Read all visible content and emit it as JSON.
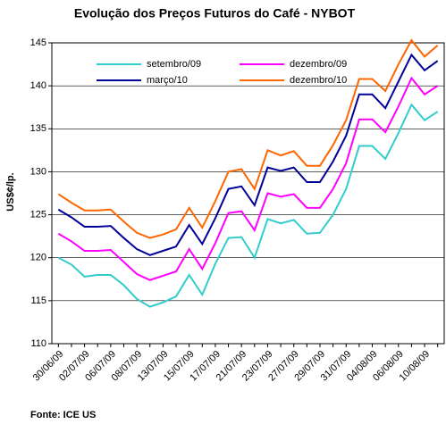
{
  "chart_data": {
    "type": "line",
    "title": "Evolução dos Preços Futuros do Café - NYBOT",
    "y_label": "US$¢/lp.",
    "source": "Fonte: ICE US",
    "categories": [
      "30/06/09",
      null,
      "02/07/09",
      null,
      "06/07/09",
      null,
      "08/07/09",
      null,
      "13/07/09",
      null,
      "15/07/09",
      null,
      "17/07/09",
      null,
      "21/07/09",
      null,
      "23/07/09",
      null,
      "27/07/09",
      null,
      "29/07/09",
      null,
      "31/07/09",
      null,
      "04/08/09",
      null,
      "06/08/09",
      null,
      "10/08/09",
      null
    ],
    "series": [
      {
        "name": "setembro/09",
        "color": "#33cccc",
        "values": [
          120,
          119.2,
          117.8,
          118,
          118,
          116.8,
          115.2,
          114.3,
          114.8,
          115.5,
          118,
          115.7,
          119.3,
          122.3,
          122.4,
          120,
          124.5,
          124,
          124.4,
          122.8,
          122.9,
          125,
          128,
          133,
          133,
          131.5,
          134.5,
          137.8,
          136,
          137
        ]
      },
      {
        "name": "dezembro/09",
        "color": "#ff00ff",
        "values": [
          122.8,
          121.9,
          120.8,
          120.8,
          120.9,
          119.5,
          118.1,
          117.4,
          117.9,
          118.4,
          121,
          118.7,
          121.7,
          125.2,
          125.4,
          123.2,
          127.5,
          127.1,
          127.4,
          125.8,
          125.8,
          128,
          131,
          136.1,
          136.1,
          134.6,
          137.6,
          140.9,
          139,
          140
        ]
      },
      {
        "name": "março/10",
        "color": "#000099",
        "values": [
          125.6,
          124.7,
          123.6,
          123.6,
          123.7,
          122.3,
          121,
          120.3,
          120.8,
          121.3,
          123.8,
          121.6,
          124.6,
          128,
          128.3,
          126.1,
          130.5,
          130.1,
          130.5,
          128.8,
          128.8,
          131.2,
          134.2,
          139,
          139,
          137.4,
          140.5,
          143.6,
          141.8,
          142.9
        ]
      },
      {
        "name": "dezembro/10",
        "color": "#ff6600",
        "values": [
          127.4,
          126.4,
          125.5,
          125.5,
          125.6,
          124.2,
          122.9,
          122.3,
          122.7,
          123.3,
          125.8,
          123.5,
          126.6,
          130,
          130.3,
          128,
          132.5,
          131.9,
          132.4,
          130.7,
          130.7,
          133.1,
          136,
          140.8,
          140.8,
          139.4,
          142.5,
          145.3,
          143.4,
          144.7
        ]
      }
    ],
    "ylim": [
      110,
      145
    ],
    "yticks": [
      110,
      115,
      120,
      125,
      130,
      135,
      140,
      145
    ],
    "grid": true
  }
}
